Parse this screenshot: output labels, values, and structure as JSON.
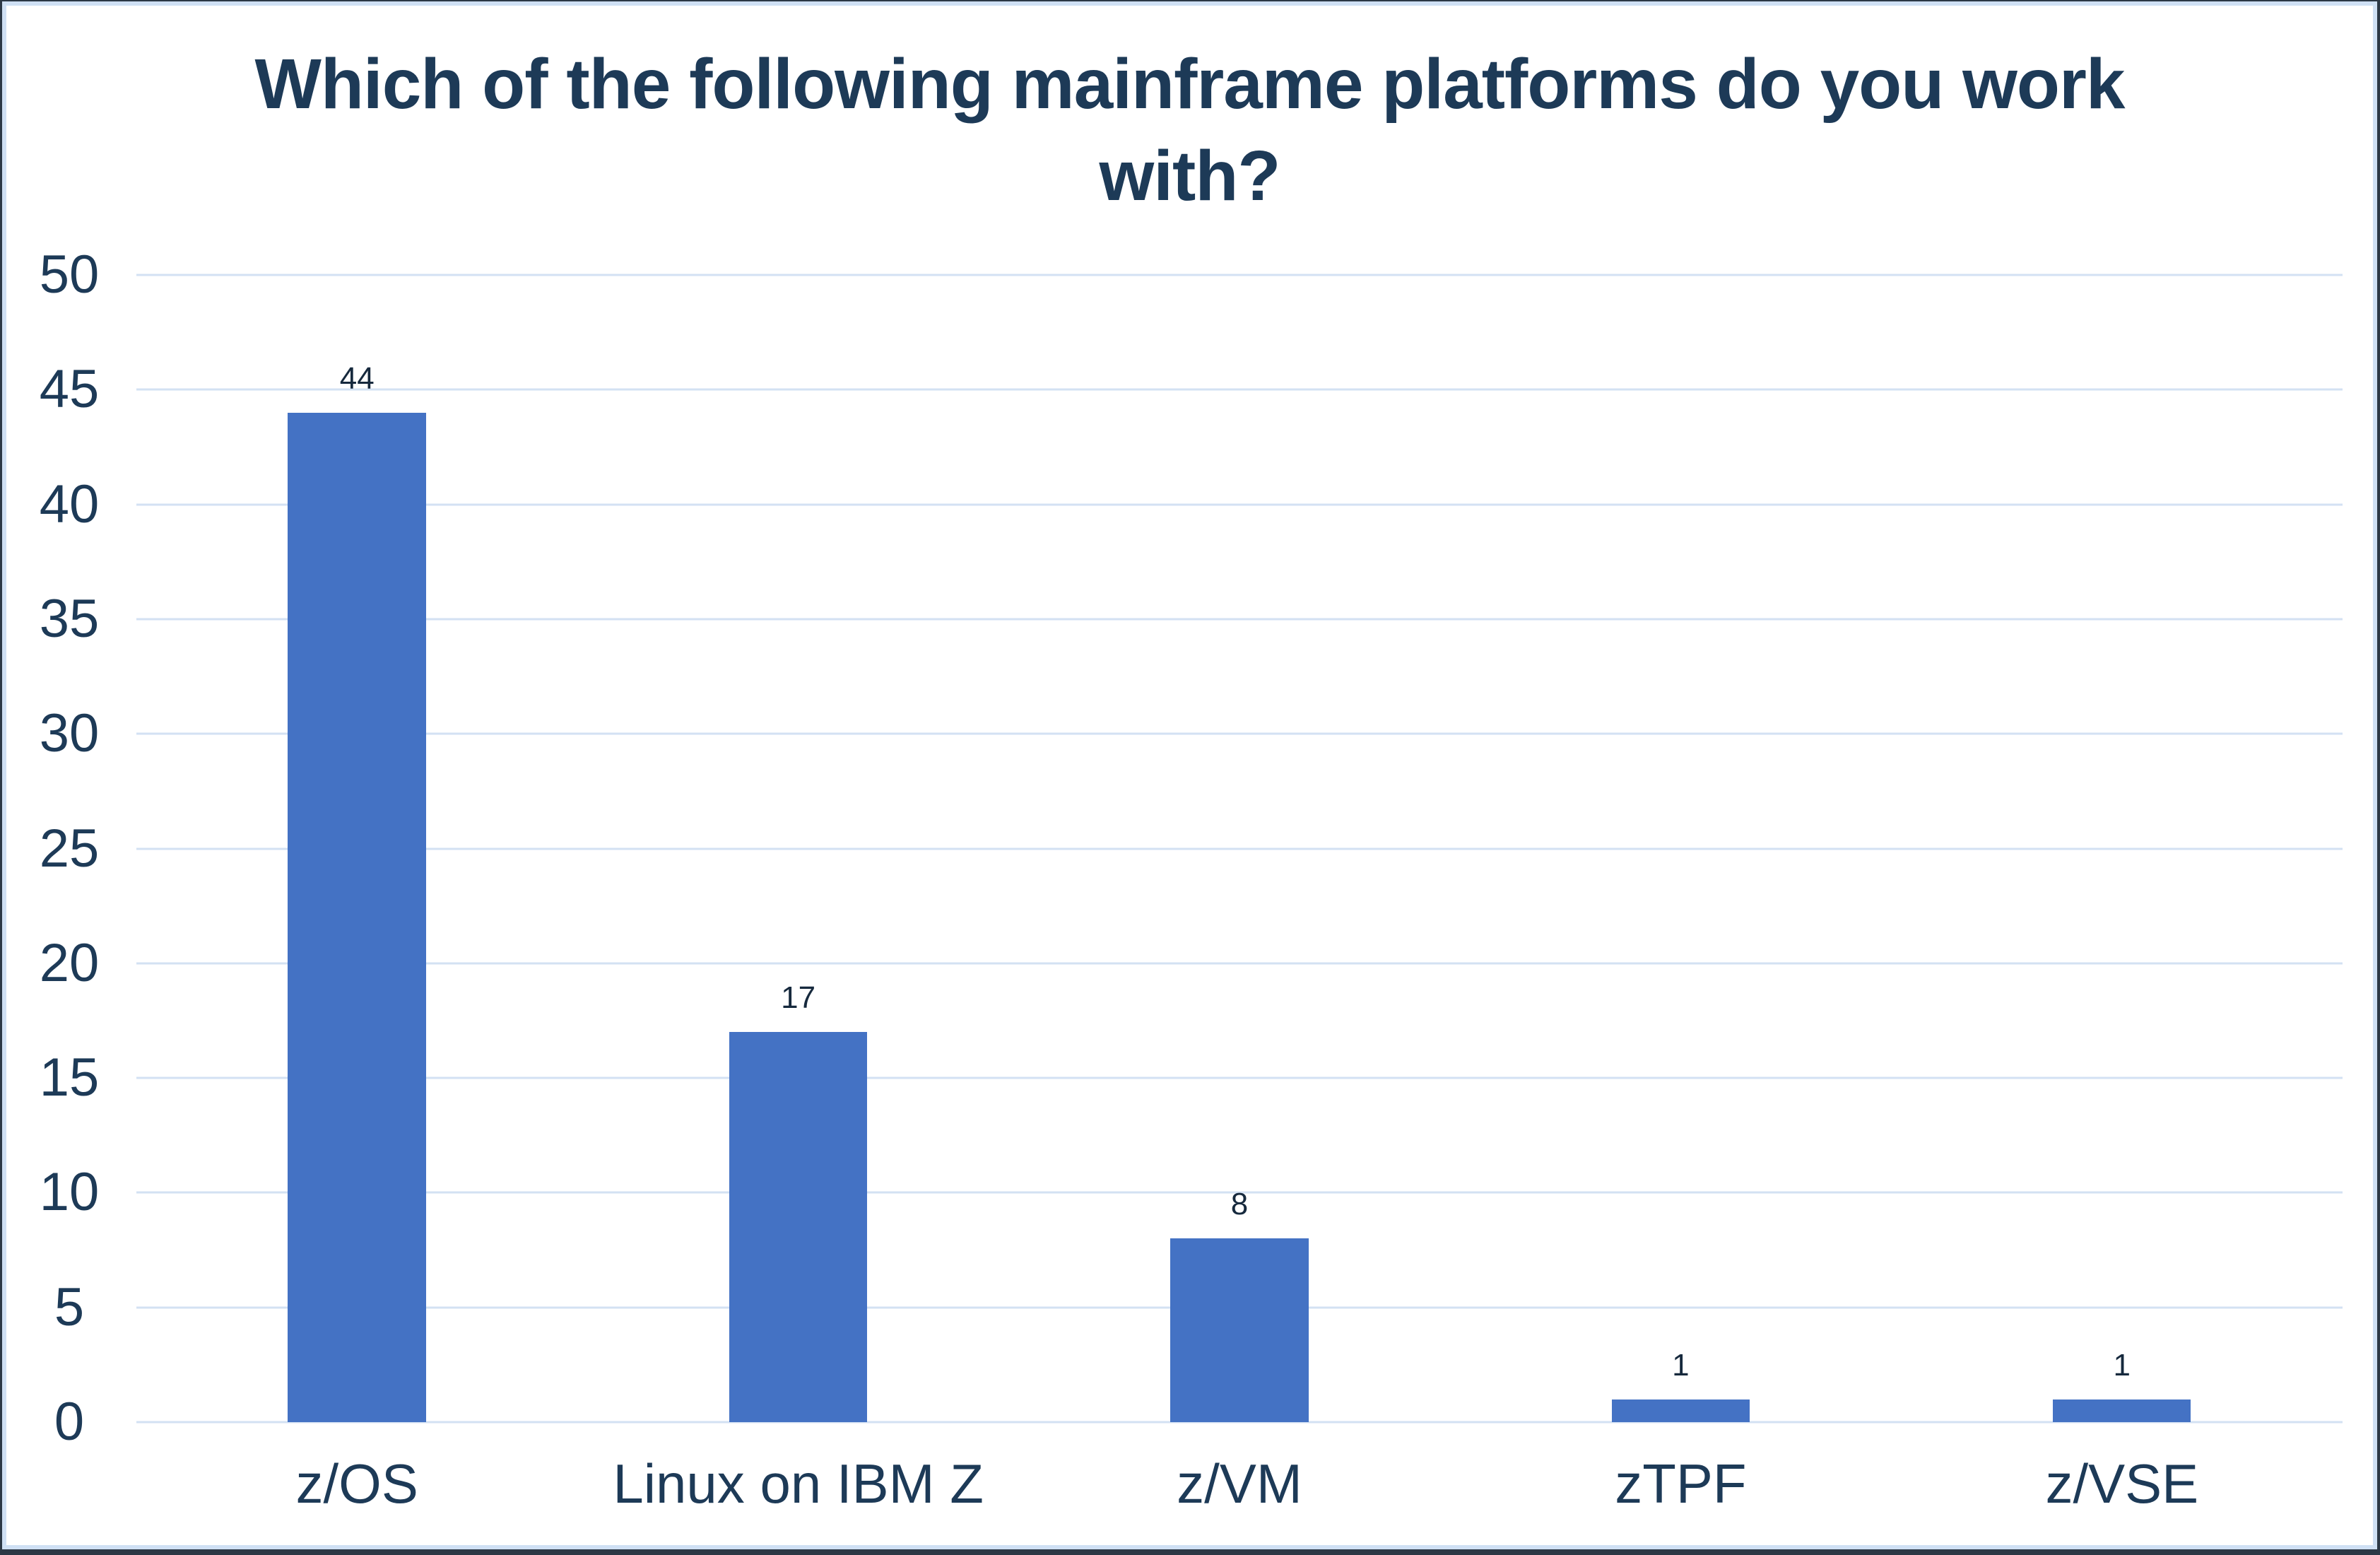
{
  "header": {
    "title_line1": "Which of the following mainframe platforms do you work",
    "title_line2": "with?"
  },
  "colors": {
    "bar": "#4472C4",
    "gridline": "#D3E1F3",
    "text": "#1D3A57",
    "value_label": "#16293D",
    "border_inner": "#CFE0F4",
    "border_outer": "#2C3845",
    "background": "#FFFFFF"
  },
  "chart_data": {
    "type": "bar",
    "title": "Which of the following mainframe platforms do you work with?",
    "categories": [
      "z/OS",
      "Linux on IBM Z",
      "z/VM",
      "zTPF",
      "z/VSE"
    ],
    "values": [
      44,
      17,
      8,
      1,
      1
    ],
    "data_labels": [
      "44",
      "17",
      "8",
      "1",
      "1"
    ],
    "xlabel": "",
    "ylabel": "",
    "ylim": [
      0,
      50
    ],
    "yticks": [
      0,
      5,
      10,
      15,
      20,
      25,
      30,
      35,
      40,
      45,
      50
    ],
    "grid": "horizontal",
    "legend": "none",
    "bar_color": "#4472C4"
  }
}
